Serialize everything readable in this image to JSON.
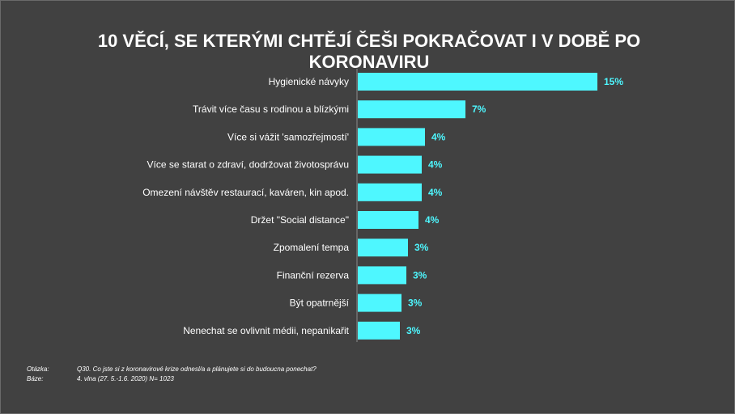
{
  "title": "10 VĚCÍ, SE KTERÝMI CHTĚJÍ ČEŠI POKRAČOVAT I V DOBĚ PO KORONAVIRU",
  "colors": {
    "background": "#414141",
    "bar": "#4ef7ff",
    "text": "#ffffff",
    "value_label": "#4ef7ff"
  },
  "chart_data": {
    "type": "bar",
    "orientation": "horizontal",
    "categories": [
      "Hygienické návyky",
      "Trávit více času s rodinou a blízkými",
      "Více si vážit 'samozřejmostí'",
      "Více se starat o zdraví, dodržovat životosprávu",
      "Omezení návštěv restaurací, kaváren, kin apod.",
      "Držet  \"Social distance\"",
      "Zpomalení tempa",
      "Finanční rezerva",
      "Být opatrnější",
      "Nenechat se ovlivnit médii, nepanikařit"
    ],
    "values": [
      15,
      7,
      4,
      4,
      4,
      4,
      3,
      3,
      3,
      3
    ],
    "value_labels": [
      "15%",
      "7%",
      "4%",
      "4%",
      "4%",
      "4%",
      "3%",
      "3%",
      "3%",
      "3%"
    ],
    "bar_ratios": [
      1.0,
      0.45,
      0.28,
      0.268,
      0.266,
      0.254,
      0.21,
      0.203,
      0.183,
      0.177
    ],
    "unit": "%",
    "grid": false,
    "legend": "none"
  },
  "footer": {
    "question_label": "Otázka:",
    "question_text": "Q30. Co jste si z koronavirové krize odnesl/a a plánujete si do budoucna ponechat?",
    "base_label": "Báze:",
    "base_text": "4.  vlna (27. 5.-1.6. 2020) N= 1023"
  }
}
